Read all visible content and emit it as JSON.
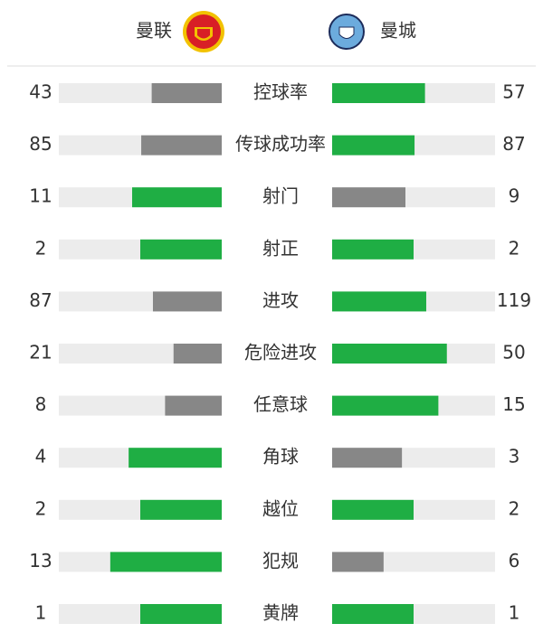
{
  "teams": {
    "home": "曼联",
    "away": "曼城"
  },
  "colors": {
    "leader": "#1fae44",
    "trailer": "#878787",
    "track": "#ececec"
  },
  "stats": [
    {
      "label": "控球率",
      "home": 43,
      "away": 57
    },
    {
      "label": "传球成功率",
      "home": 85,
      "away": 87
    },
    {
      "label": "射门",
      "home": 11,
      "away": 9
    },
    {
      "label": "射正",
      "home": 2,
      "away": 2
    },
    {
      "label": "进攻",
      "home": 87,
      "away": 119
    },
    {
      "label": "危险进攻",
      "home": 21,
      "away": 50
    },
    {
      "label": "任意球",
      "home": 8,
      "away": 15
    },
    {
      "label": "角球",
      "home": 4,
      "away": 3
    },
    {
      "label": "越位",
      "home": 2,
      "away": 2
    },
    {
      "label": "犯规",
      "home": 13,
      "away": 6
    },
    {
      "label": "黄牌",
      "home": 1,
      "away": 1
    }
  ]
}
